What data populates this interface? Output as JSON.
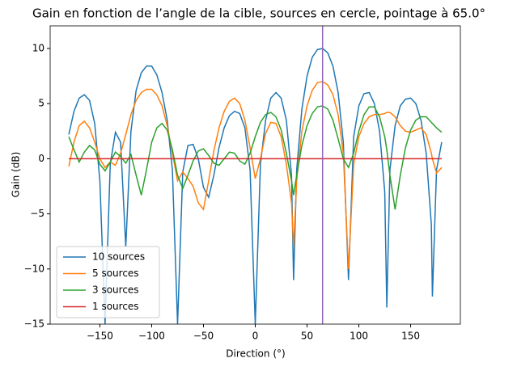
{
  "chart_data": {
    "type": "line",
    "title": "Gain en fonction de l’angle de la cible, sources en cercle, pointage à 65.0°",
    "x_label": "Direction (°)",
    "y_label": "Gain (dB)",
    "x": [
      -180,
      -175,
      -170,
      -165,
      -160,
      -155,
      -150,
      -145,
      -140,
      -135,
      -130,
      -125,
      -120,
      -115,
      -110,
      -105,
      -100,
      -95,
      -90,
      -85,
      -80,
      -75,
      -70,
      -65,
      -60,
      -55,
      -50,
      -45,
      -40,
      -35,
      -30,
      -25,
      -20,
      -15,
      -10,
      -5,
      0,
      5,
      10,
      15,
      20,
      25,
      30,
      35,
      37,
      40,
      45,
      50,
      55,
      60,
      65,
      70,
      75,
      80,
      85,
      90,
      95,
      100,
      105,
      110,
      115,
      120,
      125,
      127,
      130,
      135,
      140,
      145,
      150,
      155,
      160,
      165,
      170,
      171,
      175,
      180
    ],
    "series": [
      {
        "name": "10 sources",
        "color": "#1f77b4",
        "values": [
          2.2,
          4.3,
          5.5,
          5.8,
          5.3,
          3.2,
          -2,
          -15,
          -0.5,
          2.4,
          1.5,
          -8,
          2.5,
          6.2,
          7.8,
          8.4,
          8.4,
          7.6,
          6.0,
          3.5,
          -1,
          -15,
          -1.2,
          1.2,
          1.3,
          0,
          -2.6,
          -3.5,
          -1.5,
          1,
          2.8,
          3.9,
          4.3,
          4.1,
          2.8,
          -1,
          -15,
          -0.5,
          3.5,
          5.5,
          6.0,
          5.5,
          3.5,
          -1.5,
          -11,
          -1,
          4.5,
          7.5,
          9.2,
          9.9,
          10,
          9.6,
          8.4,
          6,
          1.5,
          -11,
          2,
          4.8,
          5.9,
          6,
          5,
          2.5,
          -3,
          -13.5,
          -1,
          3,
          4.8,
          5.4,
          5.5,
          5,
          3.5,
          0.5,
          -6,
          -12.5,
          -1,
          1.5
        ]
      },
      {
        "name": "5 sources",
        "color": "#ff7f0e",
        "values": [
          -0.7,
          1.5,
          3,
          3.4,
          2.8,
          1.5,
          0,
          -0.8,
          -0.3,
          -0.6,
          0.5,
          2.2,
          4,
          5.3,
          6,
          6.3,
          6.3,
          5.8,
          4.8,
          3,
          0.5,
          -2,
          -1.2,
          -1.8,
          -2.5,
          -4,
          -4.6,
          -2,
          0.7,
          2.8,
          4.3,
          5.2,
          5.5,
          5,
          3.5,
          1,
          -1.8,
          0,
          2.3,
          3.3,
          3.2,
          2,
          -0.5,
          -4,
          -8,
          -2,
          2.5,
          4.8,
          6.2,
          6.9,
          7,
          6.7,
          5.8,
          4,
          0.5,
          -10,
          -0.5,
          2,
          3.2,
          3.8,
          4,
          4,
          4.1,
          4.2,
          4.2,
          3.8,
          3,
          2.5,
          2.4,
          2.6,
          2.8,
          2.2,
          0.5,
          0,
          -1.3,
          -0.8
        ]
      },
      {
        "name": "3 sources",
        "color": "#2ca02c",
        "values": [
          2,
          0.8,
          -0.3,
          0.6,
          1.2,
          0.8,
          -0.5,
          -1.1,
          -0.3,
          0.6,
          0.2,
          -0.4,
          0.4,
          -1.5,
          -3.3,
          -1,
          1.5,
          2.8,
          3.2,
          2.6,
          0.8,
          -1.5,
          -2.7,
          -1.5,
          -0.2,
          0.7,
          0.9,
          0.3,
          -0.4,
          -0.6,
          0,
          0.6,
          0.5,
          -0.2,
          -0.5,
          0.5,
          2,
          3.3,
          4,
          4.2,
          3.8,
          2.6,
          0.5,
          -2,
          -3.3,
          -1.5,
          1.2,
          3,
          4.1,
          4.7,
          4.8,
          4.5,
          3.5,
          1.8,
          0,
          -0.8,
          0.5,
          2.5,
          4,
          4.7,
          4.7,
          3.8,
          2,
          0.8,
          -1.5,
          -4.6,
          -1.5,
          1,
          2.6,
          3.5,
          3.8,
          3.8,
          3.3,
          3.2,
          2.8,
          2.4
        ]
      },
      {
        "name": "1 sources",
        "color": "#d62728",
        "values": [
          0,
          0,
          0,
          0,
          0,
          0,
          0,
          0,
          0,
          0,
          0,
          0,
          0,
          0,
          0,
          0,
          0,
          0,
          0,
          0,
          0,
          0,
          0,
          0,
          0,
          0,
          0,
          0,
          0,
          0,
          0,
          0,
          0,
          0,
          0,
          0,
          0,
          0,
          0,
          0,
          0,
          0,
          0,
          0,
          0,
          0,
          0,
          0,
          0,
          0,
          0,
          0,
          0,
          0,
          0,
          0,
          0,
          0,
          0,
          0,
          0,
          0,
          0,
          0,
          0,
          0,
          0,
          0,
          0,
          0,
          0,
          0,
          0,
          0,
          0,
          0
        ]
      }
    ],
    "vline": {
      "x": 65,
      "color": "#9467bd"
    },
    "xlim": [
      -198,
      198
    ],
    "ylim": [
      -15,
      12.05
    ],
    "xticks": [
      {
        "value": -150,
        "label": "−150"
      },
      {
        "value": -100,
        "label": "−100"
      },
      {
        "value": -50,
        "label": "−50"
      },
      0,
      50,
      100,
      150
    ],
    "yticks": [
      {
        "value": -15,
        "label": "−15"
      },
      {
        "value": -10,
        "label": "−10"
      },
      {
        "value": -5,
        "label": "−5"
      },
      0,
      5,
      10
    ],
    "legend": "lower left",
    "grid": false
  }
}
